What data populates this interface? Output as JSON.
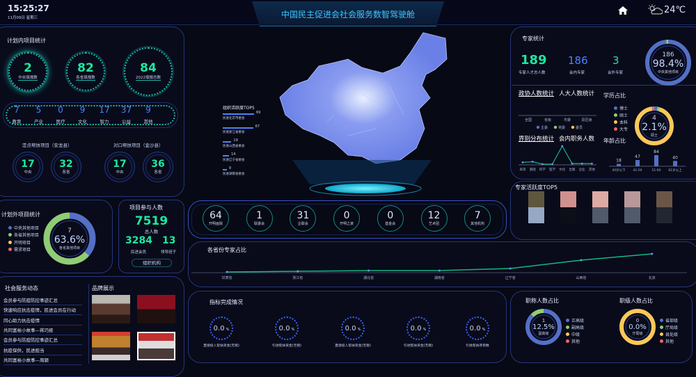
{
  "header": {
    "time": "15:25:27",
    "date": "11月09日 星期三",
    "title": "中国民主促进会社会服务数智驾驶舱",
    "temperature": "24℃",
    "icons": [
      "home-icon",
      "partly-cloudy-icon"
    ]
  },
  "colors": {
    "green": "#1fe6a0",
    "blue": "#4a82ff",
    "series": [
      "#5470c6",
      "#91cc75",
      "#fac858",
      "#ee6666"
    ],
    "line": "#12b886"
  },
  "plan_in": {
    "title": "计划内项目统计",
    "top": [
      {
        "value": "2",
        "label": "中央填报数"
      },
      {
        "value": "82",
        "label": "各省填报数"
      },
      {
        "value": "84",
        "label": "2022填报总数"
      }
    ],
    "categories": [
      {
        "value": "7",
        "label": "教育"
      },
      {
        "value": "5",
        "label": "产业"
      },
      {
        "value": "0",
        "label": "医疗"
      },
      {
        "value": "9",
        "label": "文化"
      },
      {
        "value": "17",
        "label": "智力"
      },
      {
        "value": "37",
        "label": "公益"
      },
      {
        "value": "9",
        "label": "其他"
      }
    ],
    "fixed": {
      "title": "定点帮扶项目（安龙县）",
      "items": [
        {
          "value": "17",
          "label": "中央"
        },
        {
          "value": "32",
          "label": "各省"
        }
      ]
    },
    "paired": {
      "title": "对口帮扶项目（金沙县）",
      "items": [
        {
          "value": "17",
          "label": "中央"
        },
        {
          "value": "36",
          "label": "各省"
        }
      ]
    }
  },
  "plan_out": {
    "title": "计划外项目统计",
    "legend": [
      "中央其他项目",
      "各省其他项目",
      "开明项目",
      "需求项目"
    ],
    "center": {
      "value": "7",
      "percent": "63.6%",
      "label": "各省其他项目"
    },
    "shares": [
      36.4,
      63.6,
      0,
      0
    ]
  },
  "participants": {
    "title": "项目参与人数",
    "total": "7519",
    "total_label": "总人数",
    "members": "3284",
    "members_label": "民进会员",
    "leaders": "13",
    "leaders_label": "领导班子",
    "button": "组织机构"
  },
  "news": {
    "title": "社会服务动态",
    "items": [
      "会员参与防疫防控事迹汇总",
      "快速响应抗击疫情，民进会员在行动",
      "同心助力抗击疫情",
      "共同富裕小故事—蒋巧娅",
      "会员参与防疫防控事迹汇总",
      "抗疫保供，民进担当",
      "共同富裕小故事—周颖"
    ]
  },
  "brand": {
    "title": "品牌展示"
  },
  "top5": {
    "title": "组织活跃度TOP5",
    "items": [
      {
        "label": "民进北京市委会",
        "value": 69
      },
      {
        "label": "民进浙江省委会",
        "value": 67
      },
      {
        "label": "民进山西省委会",
        "value": 19
      },
      {
        "label": "民进辽宁省委会",
        "value": 14
      },
      {
        "label": "民进湖南省委会",
        "value": 9
      }
    ]
  },
  "orgs": [
    {
      "value": "64",
      "label": "开明画院"
    },
    {
      "value": "1",
      "label": "联委会"
    },
    {
      "value": "31",
      "label": "企联会"
    },
    {
      "value": "0",
      "label": "开明之家"
    },
    {
      "value": "0",
      "label": "基金会"
    },
    {
      "value": "12",
      "label": "艺术团"
    },
    {
      "value": "7",
      "label": "其他机构"
    }
  ],
  "chart_data": [
    {
      "type": "line",
      "title": "各省份专家占比",
      "categories": [
        "甘肃省",
        "浙江省",
        "湖北省",
        "湖南省",
        "辽宁省",
        "山西省",
        "北京"
      ],
      "values": [
        1,
        2,
        3,
        3,
        6,
        18,
        27
      ]
    },
    {
      "type": "line",
      "title": "会内职务人数",
      "categories": [
        "高等",
        "基础",
        "科学",
        "医学",
        "文化",
        "出版",
        "企业",
        "其他"
      ],
      "values": [
        3,
        4,
        0,
        0,
        30,
        1,
        1,
        1
      ]
    },
    {
      "type": "bar",
      "title": "年龄占比",
      "categories": [
        "40岁以下",
        "41-50",
        "51-60",
        "61岁以上"
      ],
      "values": [
        18,
        47,
        84,
        40
      ]
    },
    {
      "type": "bar",
      "title": "政协人数统计",
      "categories": [
        "全国",
        "省级",
        "市委",
        "县区级"
      ],
      "legend": [
        "主委",
        "常委",
        "委员"
      ],
      "values": [
        0,
        0,
        0,
        0
      ]
    }
  ],
  "indicators": {
    "title": "指标完成情况",
    "unit": "%",
    "items": [
      {
        "value": "0.0",
        "label": "直接投入帮扶资金(无锡)"
      },
      {
        "value": "0.0",
        "label": "引进帮扶资金(无锡)"
      },
      {
        "value": "0.0",
        "label": "直接投入帮扶资金(无锡)"
      },
      {
        "value": "0.0",
        "label": "引进帮扶资金(无锡)"
      },
      {
        "value": "0.0",
        "label": "引进帮扶项目数"
      }
    ]
  },
  "experts": {
    "title": "专家统计",
    "total": "189",
    "total_label": "专家人才总人数",
    "inner": "186",
    "inner_label": "会内专家",
    "outer": "3",
    "outer_label": "会外专家",
    "donut": {
      "value": "186",
      "percent": "98.4%",
      "label": "中央其他项目",
      "shares": [
        98.4,
        1.6
      ]
    }
  },
  "tabs1": {
    "active": "政协人数统计",
    "other": "人大人数统计"
  },
  "tabs2": {
    "active": "界别分布统计",
    "other": "会内职务人数"
  },
  "education": {
    "title": "学历占比",
    "legend": [
      "博士",
      "硕士",
      "本科",
      "大专"
    ],
    "center": {
      "value": "4",
      "percent": "2.1%",
      "label": "硕士"
    },
    "shares": [
      2.6,
      2.1,
      93.2,
      2.1
    ]
  },
  "age": {
    "title": "年龄占比"
  },
  "active_experts": {
    "title": "专家活跃度TOP5"
  },
  "title_ratio": {
    "title": "职称人数占比",
    "legend": [
      "正高级",
      "副高级",
      "中级",
      "其他"
    ],
    "center": {
      "value": "1",
      "percent": "12.5%",
      "label": "副高级"
    },
    "shares": [
      87.5,
      12.5,
      0,
      0
    ]
  },
  "rank_ratio": {
    "title": "职级人数占比",
    "legend": [
      "省部级",
      "厅局级",
      "县处级",
      "其他"
    ],
    "center": {
      "value": "0",
      "percent": "0.0%",
      "label": "厅局级"
    },
    "shares": [
      0,
      0,
      100,
      0
    ]
  }
}
